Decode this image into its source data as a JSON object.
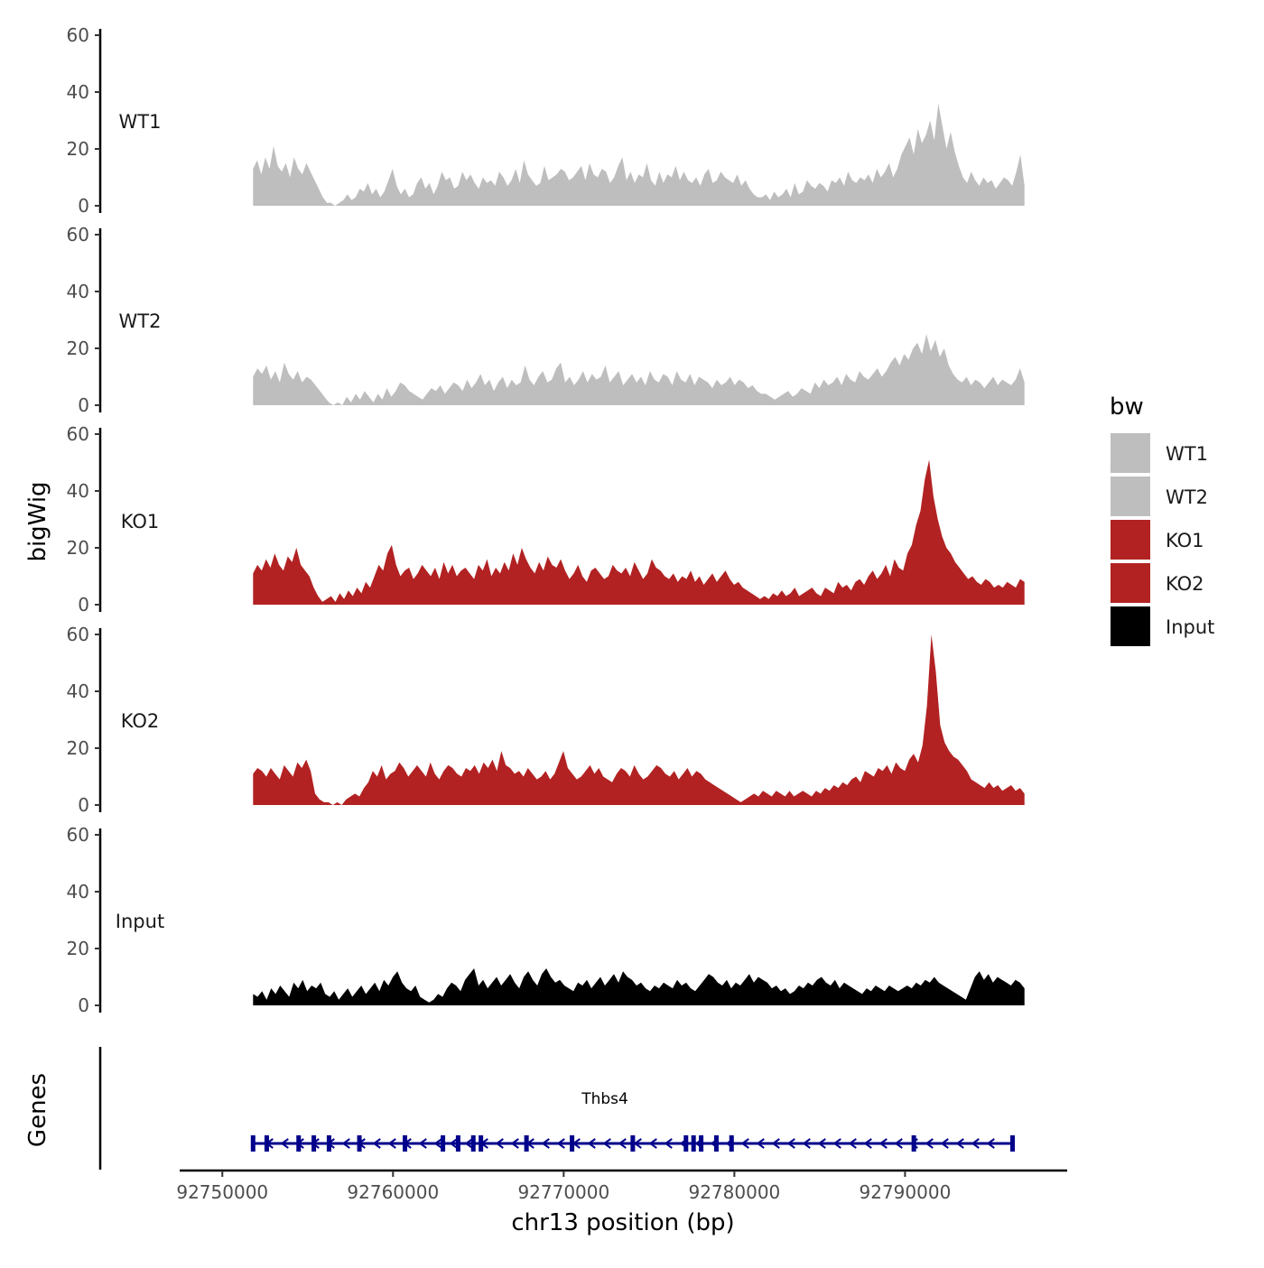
{
  "chart_data": {
    "type": "area",
    "title": "",
    "ylabel": "bigWig",
    "xlabel": "chr13 position (bp)",
    "xlim": [
      92747500,
      92799500
    ],
    "ylim": [
      0,
      60
    ],
    "y_ticks": [
      "0",
      "20",
      "40",
      "60"
    ],
    "x_ticks": [
      {
        "value": 92750000,
        "label": "92750000"
      },
      {
        "value": 92760000,
        "label": "92760000"
      },
      {
        "value": 92770000,
        "label": "92770000"
      },
      {
        "value": 92780000,
        "label": "92780000"
      },
      {
        "value": 92790000,
        "label": "92790000"
      }
    ],
    "x_range": [
      92751800,
      92797000
    ],
    "legend": {
      "title": "bw",
      "position": "right",
      "entries": [
        {
          "label": "WT1",
          "color": "#bebebe"
        },
        {
          "label": "WT2",
          "color": "#bebebe"
        },
        {
          "label": "KO1",
          "color": "#b22222"
        },
        {
          "label": "KO2",
          "color": "#b22222"
        },
        {
          "label": "Input",
          "color": "#000000"
        }
      ]
    },
    "tracks": [
      {
        "name": "WT1",
        "color": "#bebebe",
        "values": [
          13,
          16,
          11,
          17,
          13,
          21,
          14,
          12,
          15,
          10,
          17,
          13,
          11,
          15,
          12,
          9,
          6,
          3,
          1,
          1,
          0,
          1,
          2,
          4,
          2,
          3,
          6,
          5,
          8,
          4,
          6,
          3,
          5,
          9,
          13,
          7,
          4,
          6,
          3,
          4,
          8,
          10,
          6,
          8,
          4,
          7,
          12,
          9,
          10,
          6,
          7,
          12,
          9,
          11,
          8,
          6,
          10,
          8,
          9,
          7,
          12,
          10,
          7,
          9,
          13,
          8,
          16,
          11,
          9,
          7,
          8,
          14,
          9,
          10,
          11,
          13,
          12,
          9,
          10,
          12,
          14,
          9,
          15,
          11,
          10,
          13,
          12,
          8,
          10,
          14,
          17,
          9,
          12,
          8,
          11,
          10,
          15,
          9,
          7,
          12,
          8,
          11,
          10,
          14,
          9,
          12,
          9,
          8,
          10,
          7,
          11,
          13,
          8,
          9,
          12,
          10,
          9,
          8,
          11,
          7,
          9,
          6,
          4,
          3,
          3,
          4,
          2,
          5,
          3,
          4,
          6,
          3,
          8,
          4,
          5,
          9,
          7,
          6,
          8,
          7,
          5,
          9,
          8,
          10,
          7,
          12,
          9,
          8,
          10,
          9,
          11,
          8,
          13,
          10,
          12,
          15,
          10,
          13,
          18,
          21,
          24,
          18,
          27,
          22,
          25,
          30,
          23,
          36,
          28,
          20,
          26,
          19,
          14,
          10,
          8,
          12,
          9,
          7,
          10,
          8,
          9,
          6,
          8,
          10,
          9,
          7,
          12,
          18,
          7
        ]
      },
      {
        "name": "WT2",
        "color": "#bebebe",
        "values": [
          10,
          13,
          11,
          14,
          9,
          12,
          8,
          15,
          11,
          9,
          12,
          8,
          10,
          9,
          7,
          5,
          3,
          1,
          0,
          1,
          0,
          3,
          1,
          4,
          2,
          5,
          3,
          1,
          4,
          2,
          6,
          3,
          5,
          8,
          7,
          5,
          4,
          3,
          2,
          4,
          6,
          5,
          7,
          4,
          6,
          8,
          7,
          5,
          9,
          6,
          8,
          11,
          7,
          9,
          5,
          8,
          10,
          6,
          9,
          7,
          8,
          14,
          9,
          7,
          10,
          12,
          8,
          9,
          13,
          15,
          8,
          10,
          7,
          9,
          12,
          8,
          11,
          9,
          10,
          14,
          8,
          10,
          12,
          7,
          9,
          11,
          8,
          10,
          7,
          12,
          9,
          8,
          11,
          10,
          7,
          12,
          9,
          8,
          11,
          7,
          10,
          9,
          8,
          6,
          9,
          7,
          8,
          10,
          7,
          9,
          8,
          6,
          7,
          5,
          4,
          4,
          3,
          2,
          3,
          4,
          5,
          3,
          4,
          6,
          5,
          4,
          8,
          6,
          9,
          7,
          8,
          10,
          7,
          11,
          9,
          8,
          12,
          10,
          9,
          11,
          13,
          10,
          12,
          15,
          17,
          14,
          18,
          16,
          20,
          22,
          18,
          25,
          19,
          23,
          17,
          20,
          14,
          11,
          9,
          8,
          10,
          7,
          9,
          8,
          6,
          8,
          10,
          7,
          9,
          8,
          7,
          9,
          13,
          8
        ]
      },
      {
        "name": "KO1",
        "color": "#b22222",
        "values": [
          11,
          14,
          12,
          16,
          13,
          18,
          14,
          12,
          17,
          15,
          20,
          14,
          12,
          10,
          6,
          3,
          1,
          2,
          3,
          1,
          4,
          2,
          5,
          3,
          6,
          4,
          8,
          6,
          10,
          14,
          12,
          18,
          21,
          14,
          10,
          12,
          13,
          9,
          11,
          14,
          12,
          10,
          13,
          9,
          15,
          11,
          14,
          10,
          12,
          13,
          11,
          9,
          14,
          12,
          16,
          10,
          13,
          11,
          15,
          12,
          18,
          14,
          20,
          16,
          13,
          11,
          15,
          12,
          17,
          14,
          13,
          16,
          12,
          9,
          11,
          14,
          10,
          8,
          12,
          13,
          11,
          9,
          10,
          14,
          12,
          11,
          13,
          10,
          15,
          12,
          9,
          11,
          16,
          13,
          12,
          10,
          9,
          11,
          8,
          10,
          9,
          12,
          8,
          10,
          7,
          9,
          11,
          8,
          10,
          12,
          9,
          7,
          8,
          6,
          5,
          4,
          3,
          2,
          3,
          2,
          4,
          3,
          5,
          3,
          4,
          6,
          3,
          4,
          5,
          6,
          4,
          3,
          6,
          5,
          4,
          8,
          6,
          7,
          5,
          8,
          9,
          7,
          10,
          12,
          9,
          11,
          14,
          10,
          16,
          13,
          12,
          18,
          21,
          28,
          33,
          44,
          51,
          38,
          30,
          24,
          20,
          18,
          15,
          13,
          11,
          9,
          10,
          8,
          7,
          9,
          8,
          6,
          7,
          6,
          8,
          7,
          6,
          9,
          8
        ]
      },
      {
        "name": "KO2",
        "color": "#b22222",
        "values": [
          11,
          13,
          12,
          10,
          13,
          11,
          9,
          14,
          12,
          10,
          15,
          13,
          16,
          12,
          4,
          2,
          1,
          1,
          0,
          1,
          0,
          2,
          3,
          4,
          3,
          6,
          8,
          12,
          10,
          14,
          9,
          11,
          12,
          15,
          13,
          10,
          12,
          14,
          12,
          10,
          15,
          11,
          9,
          12,
          14,
          13,
          11,
          10,
          13,
          12,
          14,
          11,
          15,
          13,
          16,
          12,
          19,
          14,
          13,
          11,
          12,
          10,
          13,
          11,
          9,
          10,
          12,
          9,
          11,
          15,
          19,
          13,
          11,
          9,
          10,
          12,
          14,
          11,
          13,
          10,
          9,
          8,
          11,
          13,
          12,
          10,
          14,
          11,
          9,
          10,
          12,
          14,
          13,
          11,
          10,
          12,
          9,
          11,
          13,
          10,
          12,
          11,
          9,
          8,
          7,
          6,
          5,
          4,
          3,
          2,
          1,
          2,
          3,
          4,
          3,
          5,
          4,
          3,
          5,
          4,
          3,
          5,
          3,
          4,
          5,
          4,
          3,
          5,
          4,
          6,
          5,
          7,
          6,
          8,
          7,
          9,
          10,
          8,
          12,
          11,
          10,
          13,
          12,
          14,
          11,
          15,
          13,
          12,
          16,
          18,
          15,
          21,
          35,
          60,
          47,
          28,
          22,
          19,
          17,
          16,
          14,
          12,
          9,
          8,
          7,
          6,
          8,
          6,
          7,
          5,
          6,
          7,
          5,
          6,
          4
        ]
      },
      {
        "name": "Input",
        "color": "#000000",
        "values": [
          4,
          3,
          5,
          2,
          6,
          4,
          7,
          5,
          3,
          8,
          6,
          9,
          5,
          7,
          6,
          8,
          4,
          3,
          5,
          2,
          4,
          6,
          3,
          5,
          7,
          4,
          6,
          8,
          5,
          9,
          7,
          10,
          12,
          8,
          6,
          5,
          7,
          3,
          2,
          1,
          2,
          4,
          3,
          6,
          8,
          7,
          5,
          9,
          11,
          13,
          7,
          9,
          6,
          8,
          10,
          7,
          9,
          11,
          8,
          6,
          10,
          12,
          9,
          7,
          11,
          13,
          10,
          8,
          9,
          7,
          6,
          5,
          8,
          7,
          9,
          6,
          8,
          10,
          7,
          9,
          11,
          8,
          12,
          10,
          9,
          7,
          8,
          6,
          5,
          7,
          6,
          8,
          7,
          6,
          9,
          7,
          8,
          6,
          5,
          7,
          9,
          11,
          10,
          8,
          7,
          9,
          6,
          8,
          7,
          9,
          11,
          8,
          10,
          9,
          8,
          6,
          7,
          5,
          6,
          4,
          5,
          7,
          6,
          8,
          7,
          9,
          10,
          8,
          7,
          9,
          6,
          8,
          7,
          6,
          5,
          4,
          6,
          5,
          7,
          6,
          5,
          7,
          6,
          5,
          6,
          7,
          6,
          8,
          7,
          9,
          8,
          10,
          8,
          7,
          6,
          5,
          4,
          3,
          2,
          6,
          10,
          12,
          9,
          11,
          8,
          10,
          9,
          8,
          7,
          9,
          8,
          6
        ]
      }
    ],
    "genes_track": {
      "label": "Genes",
      "gene": "Thbs4",
      "color": "#00008b",
      "start": 92751800,
      "end": 92796300,
      "strand": "-"
    }
  }
}
